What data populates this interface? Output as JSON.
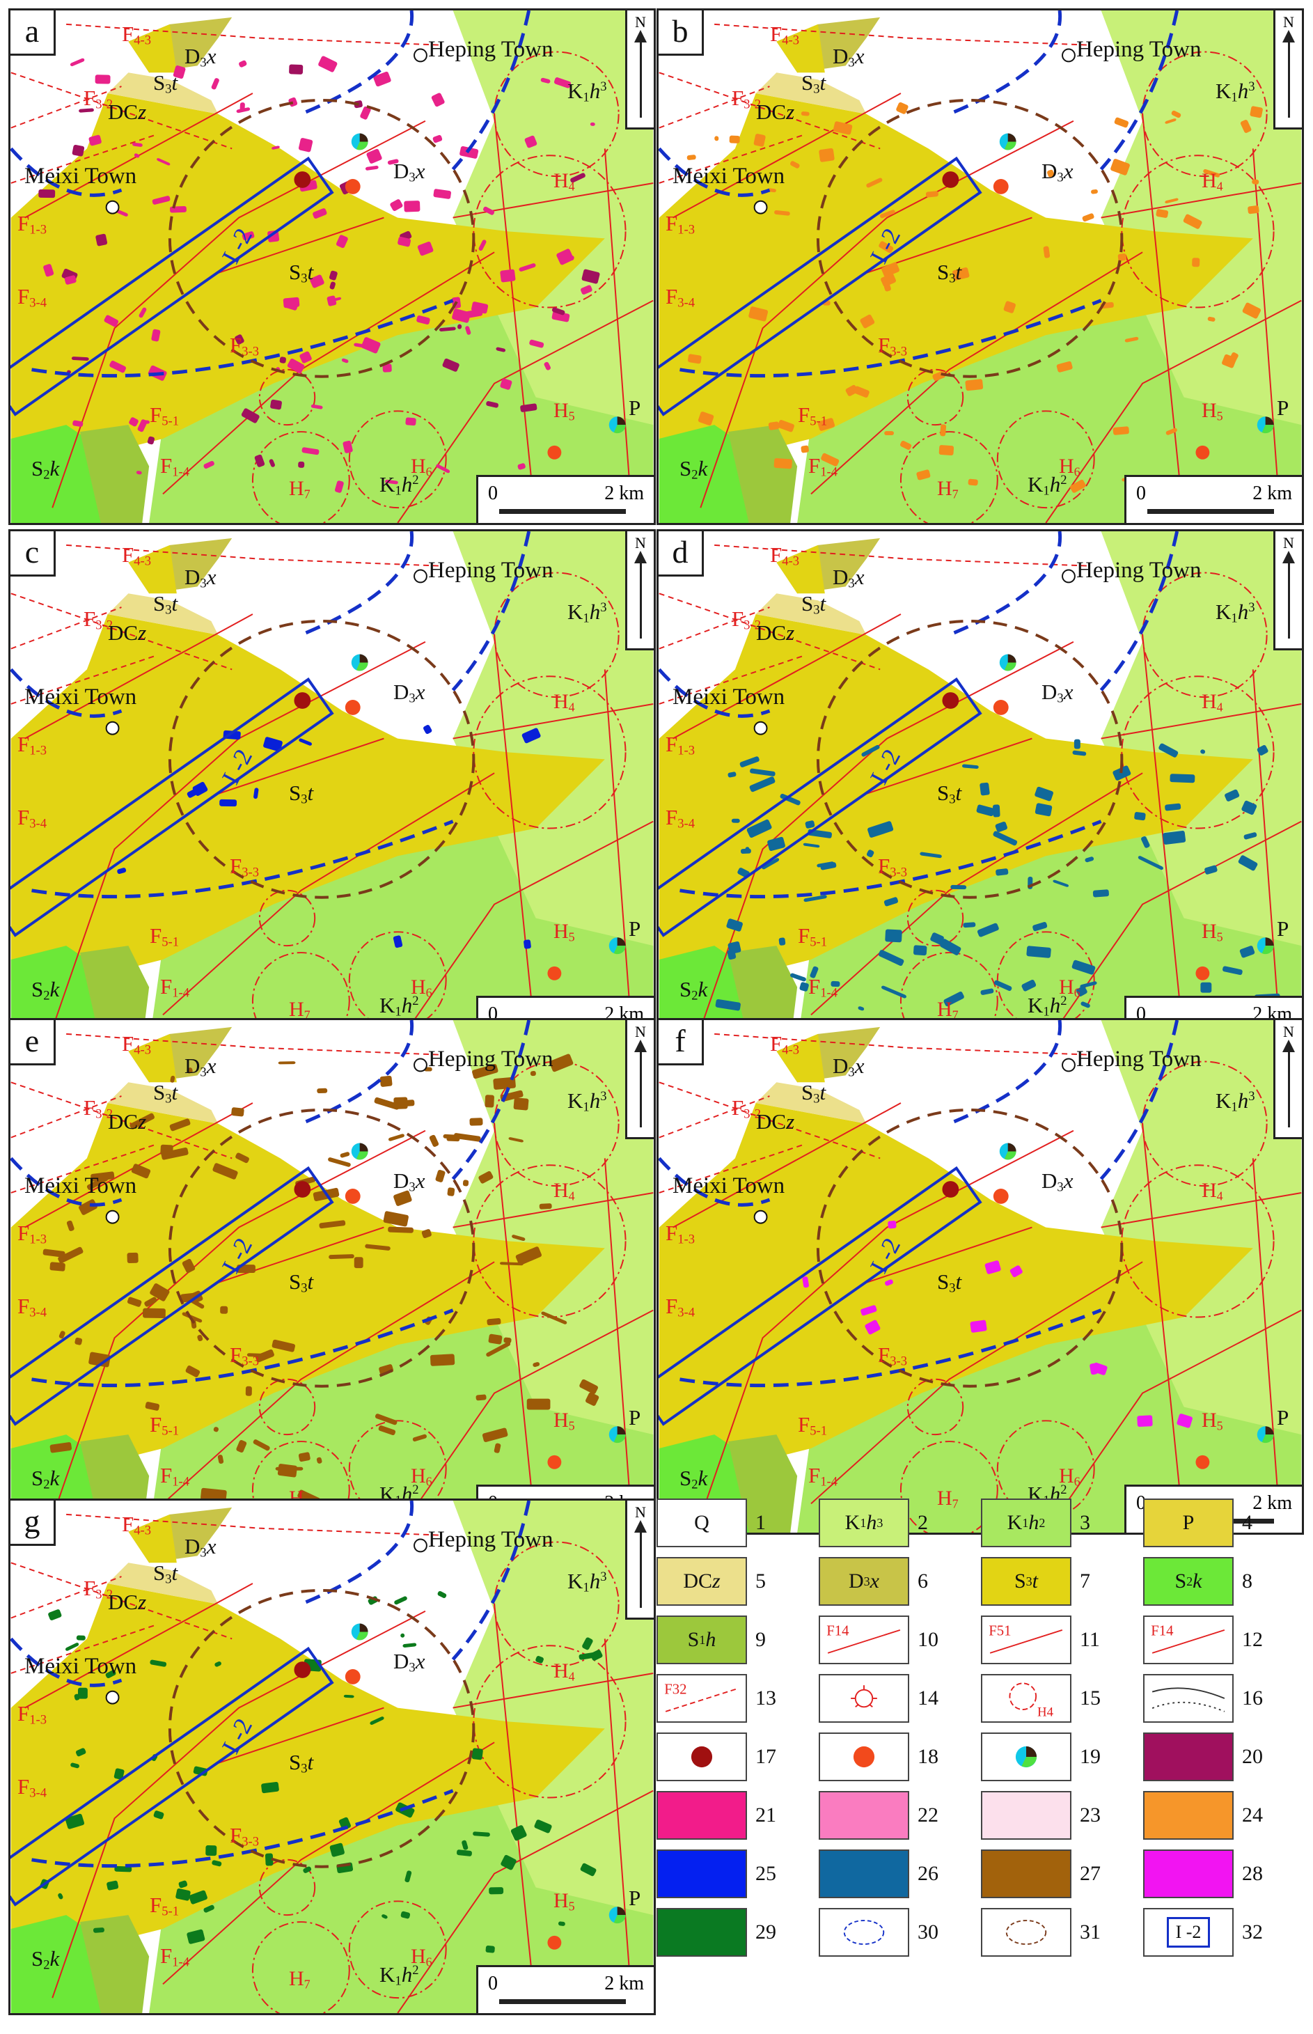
{
  "panels": [
    {
      "id": "a",
      "letter": "a",
      "anomaly_color": "#e8228a",
      "anomaly_alt": "#a0105e"
    },
    {
      "id": "b",
      "letter": "b",
      "anomaly_color": "#f48b1c",
      "anomaly_alt": "#f48b1c"
    },
    {
      "id": "c",
      "letter": "c",
      "anomaly_color": "#0820d8",
      "anomaly_alt": "#0820d8"
    },
    {
      "id": "d",
      "letter": "d",
      "anomaly_color": "#10699a",
      "anomaly_alt": "#10699a"
    },
    {
      "id": "e",
      "letter": "e",
      "anomaly_color": "#9c5a08",
      "anomaly_alt": "#9c5a08"
    },
    {
      "id": "f",
      "letter": "f",
      "anomaly_color": "#f016f0",
      "anomaly_alt": "#f016f0"
    },
    {
      "id": "g",
      "letter": "g",
      "anomaly_color": "#0c7a1c",
      "anomaly_alt": "#0c7a1c"
    }
  ],
  "labels": {
    "heping_town": "Heping Town",
    "meixi_town": "Meixi Town",
    "north": "N",
    "scale_zero": "0",
    "scale_km": "2 km",
    "faults": {
      "f43": "F",
      "f43_sub": "4-3",
      "f32": "F",
      "f32_sub": "3-2",
      "f13": "F",
      "f13_sub": "1-3",
      "f34": "F",
      "f34_sub": "3-4",
      "f33": "F",
      "f33_sub": "3-3",
      "f51": "F",
      "f51_sub": "5-1",
      "f14": "F",
      "f14_sub": "1-4",
      "f3": "F",
      "f3_sub": "3"
    },
    "units": {
      "d3x": "D",
      "d3x_sub": "3",
      "d3x_i": "x",
      "s3t": "S",
      "s3t_sub": "3",
      "s3t_i": "t",
      "dcz": "DC",
      "dcz_i": "z",
      "k1h3": "K",
      "k1h3_sub": "1",
      "k1h3_i": "h",
      "k1h3_sup": "3",
      "k1h2": "K",
      "k1h2_sub": "1",
      "k1h2_i": "h",
      "k1h2_sup": "2",
      "s2k": "S",
      "s2k_sub": "2",
      "s2k_i": "k",
      "p": "P",
      "d3t": "D",
      "d3t_sub": "3",
      "d3t_i": "x"
    },
    "zones": {
      "h4": "H",
      "h4_sub": "4",
      "h5": "H",
      "h5_sub": "5",
      "h6": "H",
      "h6_sub": "6",
      "h7": "H",
      "h7_sub": "7"
    },
    "zone_id": "I -2"
  },
  "legend": [
    {
      "n": "1",
      "text": "Q",
      "fill": "#ffffff",
      "kind": "text"
    },
    {
      "n": "2",
      "text": "K1h3",
      "fill": "#c8f078",
      "kind": "unit",
      "a": "K",
      "b": "1",
      "c": "h",
      "d": "3"
    },
    {
      "n": "3",
      "text": "K1h2",
      "fill": "#a8e860",
      "kind": "unit",
      "a": "K",
      "b": "1",
      "c": "h",
      "d": "2"
    },
    {
      "n": "4",
      "text": "P",
      "fill": "#e6d43a",
      "kind": "text"
    },
    {
      "n": "5",
      "text": "DCz",
      "fill": "#ece08c",
      "kind": "unit2",
      "a": "DC",
      "c": "z"
    },
    {
      "n": "6",
      "text": "D3x",
      "fill": "#c8c448",
      "kind": "unit",
      "a": "D",
      "b": "3",
      "c": "x",
      "d": ""
    },
    {
      "n": "7",
      "text": "S3t",
      "fill": "#e2d414",
      "kind": "unit",
      "a": "S",
      "b": "3",
      "c": "t",
      "d": ""
    },
    {
      "n": "8",
      "text": "S2k",
      "fill": "#6ce838",
      "kind": "unit",
      "a": "S",
      "b": "2",
      "c": "k",
      "d": ""
    },
    {
      "n": "9",
      "text": "S1h",
      "fill": "#9cc83c",
      "kind": "unit",
      "a": "S",
      "b": "1",
      "c": "h",
      "d": ""
    },
    {
      "n": "10",
      "text": "F1-4",
      "fill": "#ffffff",
      "kind": "fault"
    },
    {
      "n": "11",
      "text": "F5-1",
      "fill": "#ffffff",
      "kind": "fault2"
    },
    {
      "n": "12",
      "text": "F1-4",
      "fill": "#ffffff",
      "kind": "fault3"
    },
    {
      "n": "13",
      "text": "F3-2",
      "fill": "#ffffff",
      "kind": "fault4"
    },
    {
      "n": "14",
      "text": "",
      "fill": "#ffffff",
      "kind": "star"
    },
    {
      "n": "15",
      "text": "H4",
      "fill": "#ffffff",
      "kind": "ring"
    },
    {
      "n": "16",
      "text": "",
      "fill": "#ffffff",
      "kind": "bound"
    },
    {
      "n": "17",
      "text": "",
      "fill": "#ffffff",
      "kind": "dot",
      "color": "#a01010"
    },
    {
      "n": "18",
      "text": "",
      "fill": "#ffffff",
      "kind": "dot",
      "color": "#f24a1c"
    },
    {
      "n": "19",
      "text": "",
      "fill": "#ffffff",
      "kind": "pie"
    },
    {
      "n": "20",
      "text": "",
      "fill": "#a0105e",
      "kind": "swatch"
    },
    {
      "n": "21",
      "text": "",
      "fill": "#f21c8a",
      "kind": "swatch"
    },
    {
      "n": "22",
      "text": "",
      "fill": "#fa7cc0",
      "kind": "swatch"
    },
    {
      "n": "23",
      "text": "",
      "fill": "#fce0ec",
      "kind": "swatch"
    },
    {
      "n": "24",
      "text": "",
      "fill": "#f6962a",
      "kind": "swatch"
    },
    {
      "n": "25",
      "text": "",
      "fill": "#0420f0",
      "kind": "swatch"
    },
    {
      "n": "26",
      "text": "",
      "fill": "#1068a0",
      "kind": "swatch"
    },
    {
      "n": "27",
      "text": "",
      "fill": "#a2620c",
      "kind": "swatch"
    },
    {
      "n": "28",
      "text": "",
      "fill": "#f214f2",
      "kind": "swatch"
    },
    {
      "n": "29",
      "text": "",
      "fill": "#0a7a22",
      "kind": "swatch"
    },
    {
      "n": "30",
      "text": "",
      "fill": "#ffffff",
      "kind": "blueloop"
    },
    {
      "n": "31",
      "text": "",
      "fill": "#ffffff",
      "kind": "brownloop"
    },
    {
      "n": "32",
      "text": "I -2",
      "fill": "#ffffff",
      "kind": "zone"
    }
  ]
}
